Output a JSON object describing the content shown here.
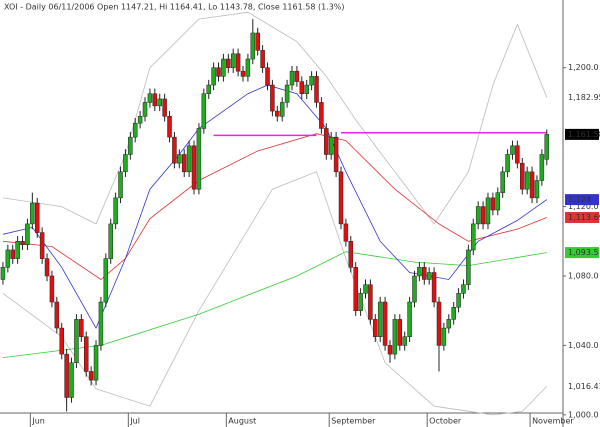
{
  "chart_data": {
    "type": "candlestick",
    "title": "XOI - Daily 06/11/2006 Open 1147.21, Hi 1164.41, Lo 1143.78, Close 1161.58 (1.3%)",
    "up_color": "#22aa22",
    "down_color": "#dd1111",
    "open": [
      1078,
      1085,
      1095,
      1090,
      1100,
      1098,
      1110,
      1122,
      1105,
      1090,
      1080,
      1065,
      1050,
      1035,
      1010,
      1030,
      1055,
      1045,
      1025,
      1020,
      1040,
      1065,
      1090,
      1110,
      1125,
      1140,
      1150,
      1160,
      1168,
      1172,
      1180,
      1185,
      1178,
      1182,
      1172,
      1160,
      1145,
      1150,
      1140,
      1155,
      1130,
      1165,
      1185,
      1190,
      1200,
      1195,
      1205,
      1200,
      1208,
      1198,
      1195,
      1205,
      1220,
      1210,
      1200,
      1190,
      1175,
      1172,
      1180,
      1190,
      1198,
      1192,
      1185,
      1190,
      1195,
      1180,
      1165,
      1150,
      1160,
      1140,
      1110,
      1100,
      1085,
      1060,
      1070,
      1075,
      1055,
      1045,
      1065,
      1040,
      1035,
      1055,
      1040,
      1045,
      1065,
      1080,
      1085,
      1078,
      1082,
      1065,
      1040,
      1050,
      1055,
      1062,
      1070,
      1075,
      1095,
      1110,
      1120,
      1110,
      1125,
      1118,
      1128,
      1140,
      1150,
      1155,
      1145,
      1130,
      1140,
      1125,
      1135,
      1147.21
    ],
    "high": [
      1088,
      1098,
      1098,
      1103,
      1103,
      1113,
      1128,
      1125,
      1108,
      1093,
      1083,
      1068,
      1053,
      1038,
      1033,
      1058,
      1058,
      1048,
      1028,
      1043,
      1068,
      1093,
      1113,
      1128,
      1143,
      1153,
      1163,
      1171,
      1175,
      1183,
      1188,
      1188,
      1185,
      1185,
      1175,
      1163,
      1153,
      1153,
      1158,
      1158,
      1168,
      1188,
      1193,
      1203,
      1203,
      1208,
      1208,
      1211,
      1211,
      1201,
      1208,
      1228,
      1223,
      1213,
      1203,
      1193,
      1178,
      1183,
      1193,
      1201,
      1201,
      1195,
      1193,
      1198,
      1198,
      1183,
      1168,
      1163,
      1163,
      1143,
      1113,
      1103,
      1088,
      1073,
      1078,
      1078,
      1058,
      1068,
      1068,
      1043,
      1058,
      1058,
      1048,
      1068,
      1083,
      1088,
      1088,
      1085,
      1085,
      1068,
      1053,
      1058,
      1065,
      1073,
      1078,
      1098,
      1113,
      1123,
      1123,
      1128,
      1128,
      1131,
      1143,
      1153,
      1158,
      1158,
      1148,
      1143,
      1143,
      1138,
      1153,
      1164.41
    ],
    "low": [
      1075,
      1082,
      1087,
      1087,
      1095,
      1095,
      1107,
      1102,
      1087,
      1077,
      1062,
      1047,
      1032,
      1002,
      1007,
      1027,
      1042,
      1022,
      1017,
      1017,
      1037,
      1062,
      1087,
      1107,
      1122,
      1137,
      1147,
      1157,
      1165,
      1169,
      1177,
      1175,
      1175,
      1169,
      1157,
      1142,
      1142,
      1137,
      1137,
      1127,
      1127,
      1162,
      1182,
      1187,
      1192,
      1192,
      1197,
      1197,
      1195,
      1192,
      1192,
      1202,
      1207,
      1197,
      1187,
      1172,
      1169,
      1169,
      1177,
      1187,
      1189,
      1182,
      1182,
      1187,
      1177,
      1162,
      1147,
      1147,
      1137,
      1107,
      1097,
      1082,
      1057,
      1057,
      1067,
      1052,
      1042,
      1042,
      1037,
      1030,
      1032,
      1037,
      1037,
      1042,
      1062,
      1077,
      1075,
      1075,
      1062,
      1025,
      1037,
      1047,
      1052,
      1059,
      1067,
      1072,
      1092,
      1107,
      1107,
      1107,
      1115,
      1115,
      1125,
      1137,
      1147,
      1142,
      1127,
      1127,
      1122,
      1122,
      1132,
      1143.78
    ],
    "close": [
      1085,
      1095,
      1090,
      1100,
      1098,
      1110,
      1122,
      1105,
      1090,
      1080,
      1065,
      1050,
      1035,
      1010,
      1030,
      1055,
      1045,
      1025,
      1020,
      1040,
      1065,
      1090,
      1110,
      1125,
      1140,
      1150,
      1160,
      1168,
      1172,
      1180,
      1185,
      1178,
      1182,
      1172,
      1160,
      1145,
      1150,
      1140,
      1155,
      1130,
      1165,
      1185,
      1190,
      1200,
      1195,
      1205,
      1200,
      1208,
      1198,
      1195,
      1205,
      1220,
      1210,
      1200,
      1190,
      1175,
      1172,
      1180,
      1190,
      1198,
      1192,
      1185,
      1190,
      1195,
      1180,
      1165,
      1150,
      1160,
      1140,
      1110,
      1100,
      1085,
      1060,
      1070,
      1075,
      1055,
      1045,
      1065,
      1040,
      1035,
      1055,
      1040,
      1045,
      1065,
      1080,
      1085,
      1078,
      1082,
      1065,
      1040,
      1050,
      1055,
      1062,
      1070,
      1075,
      1095,
      1110,
      1120,
      1110,
      1125,
      1118,
      1128,
      1140,
      1150,
      1155,
      1145,
      1130,
      1140,
      1125,
      1135,
      1150,
      1161.58
    ],
    "close_label": "1,161.58",
    "lines": [
      {
        "color": "#bbbbbb",
        "x": [
          0,
          12,
          19,
          25,
          30,
          40,
          50,
          60,
          66,
          72,
          80,
          88,
          95,
          100,
          105,
          111
        ],
        "values": [
          1125,
          1120,
          1110,
          1150,
          1200,
          1228,
          1232,
          1215,
          1195,
          1170,
          1140,
          1110,
          1140,
          1190,
          1225,
          1182.95
        ],
        "label": "1,182.95"
      },
      {
        "color": "#bbbbbb",
        "x": [
          0,
          12,
          19,
          30,
          40,
          55,
          64,
          70,
          78,
          88,
          100,
          106,
          111
        ],
        "values": [
          1070,
          1045,
          1015,
          1005,
          1060,
          1130,
          1140,
          1090,
          1030,
          1005,
          1000,
          1002,
          1016.41
        ],
        "label": "1,016.41"
      },
      {
        "color": "#33cc33",
        "x": [
          0,
          20,
          40,
          60,
          70,
          84,
          95,
          111
        ],
        "values": [
          1033,
          1040,
          1058,
          1080,
          1094,
          1088,
          1086,
          1093.5
        ],
        "label": "1,093.5",
        "boxed": true
      },
      {
        "color": "#dd3333",
        "x": [
          0,
          10,
          20,
          25,
          30,
          40,
          52,
          64,
          70,
          80,
          89,
          95,
          105,
          111
        ],
        "values": [
          1100,
          1097,
          1078,
          1090,
          1113,
          1135,
          1152,
          1162,
          1158,
          1130,
          1110,
          1100,
          1107,
          1113.69
        ],
        "label": "1,113.69",
        "boxed": true
      },
      {
        "color": "#3333cc",
        "x": [
          0,
          6,
          12,
          19,
          25,
          30,
          36,
          40,
          50,
          54,
          60,
          66,
          70,
          77,
          83,
          91,
          97,
          105,
          111
        ],
        "values": [
          1104,
          1108,
          1085,
          1050,
          1090,
          1130,
          1150,
          1165,
          1185,
          1190,
          1185,
          1165,
          1140,
          1100,
          1082,
          1078,
          1100,
          1112,
          1124
        ],
        "label": "1,124",
        "boxed": true
      },
      {
        "color": "#ee22ee",
        "x": [
          43,
          64
        ],
        "values": [
          1161,
          1161
        ]
      },
      {
        "color": "#ee22ee",
        "x": [
          69,
          111
        ],
        "values": [
          1162.5,
          1162.5
        ]
      }
    ],
    "xlim": [
      -0.6,
      113.7
    ],
    "xticks": [
      {
        "value": 6,
        "label": "Jun"
      },
      {
        "value": 26,
        "label": "Jul"
      },
      {
        "value": 46,
        "label": "August"
      },
      {
        "value": 67,
        "label": "September"
      },
      {
        "value": 87,
        "label": "October"
      },
      {
        "value": 108,
        "label": "November"
      }
    ],
    "ylim": [
      993,
      1239
    ],
    "yticks": [
      {
        "value": 1000,
        "label": "1,000.0"
      },
      {
        "value": 1040,
        "label": "1,040.0"
      },
      {
        "value": 1080,
        "label": "1,080.0"
      },
      {
        "value": 1120,
        "label": "1,120.0"
      },
      {
        "value": 1200,
        "label": "1,200.0"
      }
    ]
  }
}
